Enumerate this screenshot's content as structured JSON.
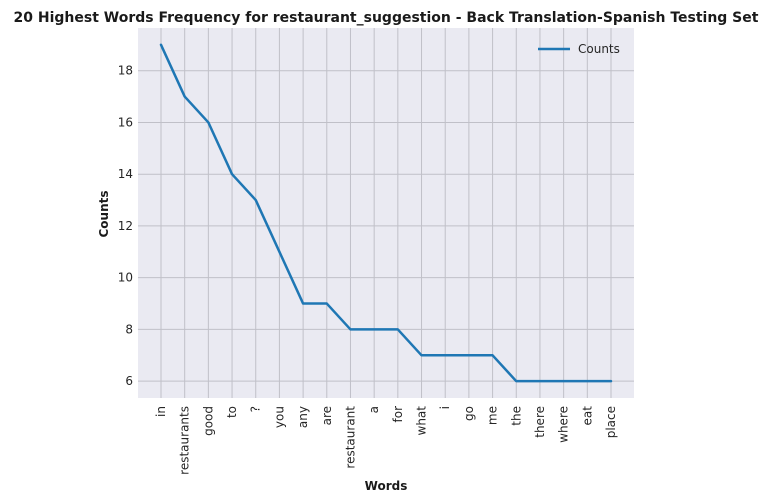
{
  "chart_data": {
    "type": "line",
    "title": "20 Highest Words Frequency for restaurant_suggestion - Back Translation-Spanish Testing Set",
    "xlabel": "Words",
    "ylabel": "Counts",
    "categories": [
      "in",
      "restaurants",
      "good",
      "to",
      "?",
      "you",
      "any",
      "are",
      "restaurant",
      "a",
      "for",
      "what",
      "i",
      "go",
      "me",
      "the",
      "there",
      "where",
      "eat",
      "place"
    ],
    "series": [
      {
        "name": "Counts",
        "values": [
          19,
          17,
          16,
          14,
          13,
          11,
          9,
          9,
          8,
          8,
          8,
          7,
          7,
          7,
          7,
          6,
          6,
          6,
          6,
          6
        ]
      }
    ],
    "ylim": [
      5.35,
      19.65
    ],
    "yticks": [
      6,
      8,
      10,
      12,
      14,
      16,
      18
    ],
    "grid": true,
    "legend": "top-right",
    "colors": {
      "line": "#1f77b4",
      "background": "#eaeaf2",
      "grid": "#c0c0c8"
    }
  }
}
